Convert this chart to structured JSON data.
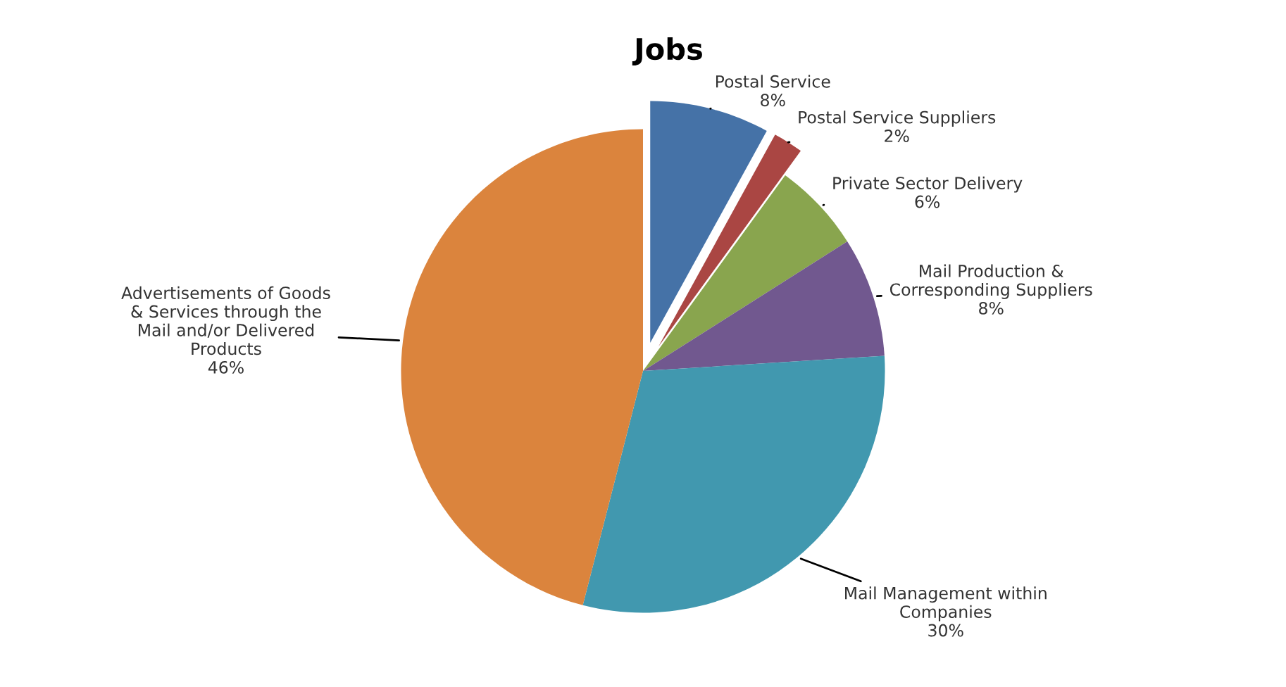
{
  "chart_data": {
    "type": "pie",
    "title": "Jobs",
    "categories": [
      "Postal Service",
      "Postal Service Suppliers",
      "Private Sector Delivery",
      "Mail Production &\nCorresponding Suppliers",
      "Mail Management within\nCompanies",
      "Advertisements of Goods\n& Services through the\nMail and/or Delivered\nProducts"
    ],
    "values": [
      8,
      2,
      6,
      8,
      30,
      46
    ],
    "colors": [
      "#4572a7",
      "#aa4643",
      "#89a54e",
      "#71588f",
      "#4198af",
      "#db843d"
    ],
    "value_labels": [
      "8%",
      "2%",
      "6%",
      "8%",
      "30%",
      "46%"
    ],
    "legend": false
  }
}
